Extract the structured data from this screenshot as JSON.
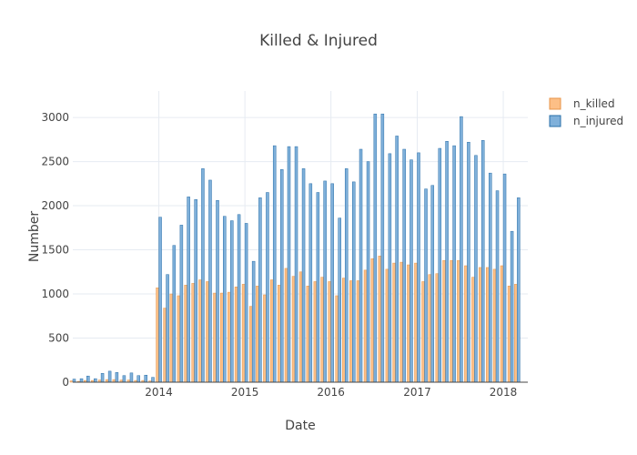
{
  "colors": {
    "n_killed_fill": "#fdbf86",
    "n_killed_stroke": "#e8964a",
    "n_injured_fill": "#7fb0da",
    "n_injured_stroke": "#2a6fa8",
    "grid": "#e6ebf2",
    "text": "#444444",
    "background": "#ffffff"
  },
  "chart_data": {
    "type": "bar",
    "title": "Killed & Injured",
    "xlabel": "Date",
    "ylabel": "Number",
    "ylim": [
      0,
      3300
    ],
    "xlim": [
      "2013-01-01",
      "2018-04-15"
    ],
    "grid": true,
    "legend_position": "top-right",
    "y_ticks": [
      0,
      500,
      1000,
      1500,
      2000,
      2500,
      3000
    ],
    "y_tick_labels": [
      "0",
      "500",
      "1000",
      "1500",
      "2000",
      "2500",
      "3000"
    ],
    "x_ticks": [
      "2014-01-01",
      "2015-01-01",
      "2016-01-01",
      "2017-01-01",
      "2018-01-01"
    ],
    "x_tick_labels": [
      "2014",
      "2015",
      "2016",
      "2017",
      "2018"
    ],
    "x": [
      "2013-01",
      "2013-02",
      "2013-03",
      "2013-04",
      "2013-05",
      "2013-06",
      "2013-07",
      "2013-08",
      "2013-09",
      "2013-10",
      "2013-11",
      "2013-12",
      "2014-01",
      "2014-02",
      "2014-03",
      "2014-04",
      "2014-05",
      "2014-06",
      "2014-07",
      "2014-08",
      "2014-09",
      "2014-10",
      "2014-11",
      "2014-12",
      "2015-01",
      "2015-02",
      "2015-03",
      "2015-04",
      "2015-05",
      "2015-06",
      "2015-07",
      "2015-08",
      "2015-09",
      "2015-10",
      "2015-11",
      "2015-12",
      "2016-01",
      "2016-02",
      "2016-03",
      "2016-04",
      "2016-05",
      "2016-06",
      "2016-07",
      "2016-08",
      "2016-09",
      "2016-10",
      "2016-11",
      "2016-12",
      "2017-01",
      "2017-02",
      "2017-03",
      "2017-04",
      "2017-05",
      "2017-06",
      "2017-07",
      "2017-08",
      "2017-09",
      "2017-10",
      "2017-11",
      "2017-12",
      "2018-01",
      "2018-02",
      "2018-03"
    ],
    "series": [
      {
        "name": "n_killed",
        "values": [
          15,
          10,
          20,
          20,
          25,
          30,
          30,
          25,
          25,
          20,
          20,
          15,
          1070,
          840,
          1000,
          980,
          1100,
          1120,
          1160,
          1140,
          1010,
          1010,
          1020,
          1080,
          1110,
          860,
          1090,
          990,
          1160,
          1100,
          1290,
          1200,
          1250,
          1090,
          1140,
          1190,
          1140,
          980,
          1180,
          1150,
          1150,
          1270,
          1400,
          1430,
          1280,
          1350,
          1360,
          1330,
          1350,
          1140,
          1220,
          1230,
          1380,
          1380,
          1380,
          1320,
          1190,
          1300,
          1300,
          1280,
          1320,
          1090,
          1110
        ]
      },
      {
        "name": "n_injured",
        "values": [
          35,
          40,
          70,
          40,
          100,
          125,
          110,
          75,
          105,
          75,
          80,
          55,
          1870,
          1220,
          1550,
          1780,
          2100,
          2070,
          2420,
          2290,
          2060,
          1880,
          1830,
          1900,
          1800,
          1370,
          2090,
          2150,
          2680,
          2410,
          2670,
          2670,
          2420,
          2250,
          2150,
          2280,
          2250,
          1860,
          2420,
          2270,
          2640,
          2500,
          3040,
          3040,
          2590,
          2790,
          2640,
          2520,
          2600,
          2190,
          2230,
          2650,
          2730,
          2680,
          3010,
          2720,
          2570,
          2740,
          2370,
          2170,
          2360,
          1710,
          2090
        ]
      }
    ]
  }
}
